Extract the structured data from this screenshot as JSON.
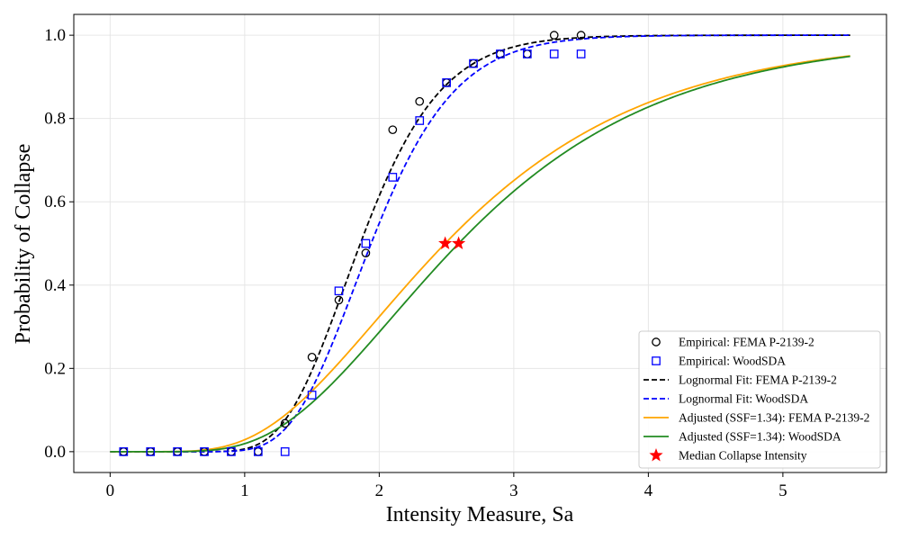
{
  "chart_data": {
    "type": "scatter",
    "title": "",
    "xlabel": "Intensity Measure, Sa",
    "ylabel": "Probability of Collapse",
    "xlim": [
      -0.27,
      5.77
    ],
    "ylim": [
      -0.05,
      1.05
    ],
    "xticks": [
      0,
      1,
      2,
      3,
      4,
      5
    ],
    "xtick_labels": [
      "0",
      "1",
      "2",
      "3",
      "4",
      "5"
    ],
    "yticks": [
      0.0,
      0.2,
      0.4,
      0.6,
      0.8,
      1.0
    ],
    "ytick_labels": [
      "0.0",
      "0.2",
      "0.4",
      "0.6",
      "0.8",
      "1.0"
    ],
    "grid": true,
    "legend_position": "lower-right",
    "legend_entries": [
      "Empirical: FEMA P-2139-2",
      "Empirical: WoodSDA",
      "Lognormal Fit: FEMA P-2139-2",
      "Lognormal Fit: WoodSDA",
      "Adjusted (SSF=1.34): FEMA P-2139-2",
      "Adjusted (SSF=1.34): WoodSDA",
      "Median Collapse Intensity"
    ],
    "series": [
      {
        "name": "Empirical: FEMA P-2139-2",
        "kind": "scatter",
        "marker": "circle",
        "color": "#000000",
        "x": [
          0.1,
          0.3,
          0.5,
          0.7,
          0.9,
          1.1,
          1.3,
          1.5,
          1.7,
          1.9,
          2.1,
          2.3,
          2.5,
          2.7,
          2.9,
          3.1,
          3.3,
          3.5
        ],
        "y": [
          0.0,
          0.0,
          0.0,
          0.0,
          0.0,
          0.0,
          0.068,
          0.227,
          0.364,
          0.477,
          0.773,
          0.841,
          0.886,
          0.932,
          0.955,
          0.955,
          1.0,
          1.0
        ]
      },
      {
        "name": "Empirical: WoodSDA",
        "kind": "scatter",
        "marker": "square",
        "color": "#0000ff",
        "x": [
          0.1,
          0.3,
          0.5,
          0.7,
          0.9,
          1.1,
          1.3,
          1.5,
          1.7,
          1.9,
          2.1,
          2.3,
          2.5,
          2.7,
          2.9,
          3.1,
          3.3,
          3.5
        ],
        "y": [
          0.0,
          0.0,
          0.0,
          0.0,
          0.0,
          0.0,
          0.0,
          0.136,
          0.386,
          0.5,
          0.659,
          0.795,
          0.886,
          0.932,
          0.955,
          0.955,
          0.955,
          0.955
        ]
      },
      {
        "name": "Lognormal Fit: FEMA P-2139-2",
        "kind": "line",
        "style": "dashed",
        "color": "#000000",
        "median": 1.86,
        "beta": 0.25,
        "x_range": [
          0.0,
          5.5
        ]
      },
      {
        "name": "Lognormal Fit: WoodSDA",
        "kind": "line",
        "style": "dashed",
        "color": "#0000ff",
        "median": 1.94,
        "beta": 0.25,
        "x_range": [
          0.0,
          5.5
        ]
      },
      {
        "name": "Adjusted (SSF=1.34): FEMA P-2139-2",
        "kind": "line",
        "style": "solid",
        "color": "#ffa500",
        "median": 2.49,
        "beta": 0.48,
        "x_range": [
          0.0,
          5.5
        ]
      },
      {
        "name": "Adjusted (SSF=1.34): WoodSDA",
        "kind": "line",
        "style": "solid",
        "color": "#228b22",
        "median": 2.59,
        "beta": 0.46,
        "x_range": [
          0.0,
          5.5
        ]
      },
      {
        "name": "Median Collapse Intensity",
        "kind": "scatter",
        "marker": "star",
        "color": "#ff0000",
        "x": [
          2.49,
          2.59
        ],
        "y": [
          0.5,
          0.5
        ]
      }
    ]
  }
}
